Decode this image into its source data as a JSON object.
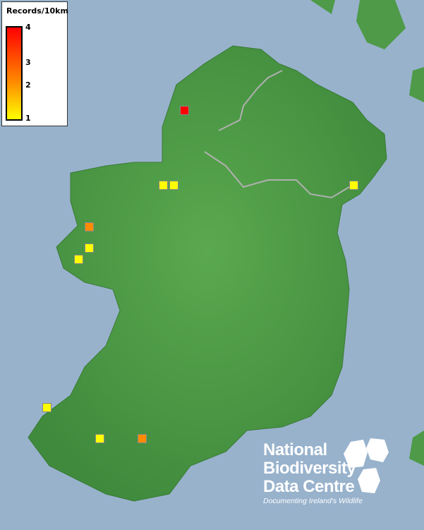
{
  "legend": {
    "title": "Records/10km",
    "ticks": [
      "4",
      "3",
      "2",
      "1"
    ],
    "scale_min": 1,
    "scale_max": 4,
    "colors": {
      "low": "#ffff00",
      "mid": "#ff8c00",
      "high": "#ff0000"
    }
  },
  "records": [
    4,
    1,
    1,
    1,
    2,
    1,
    1,
    1,
    1,
    2
  ],
  "colors": {
    "sea": "#98b2cc",
    "land": "#4e9a48",
    "border": "#b0b0b0"
  },
  "logo": {
    "line1": "National",
    "line2": "Biodiversity",
    "line3": "Data Centre",
    "tagline": "Documenting Ireland's Wildlife"
  }
}
